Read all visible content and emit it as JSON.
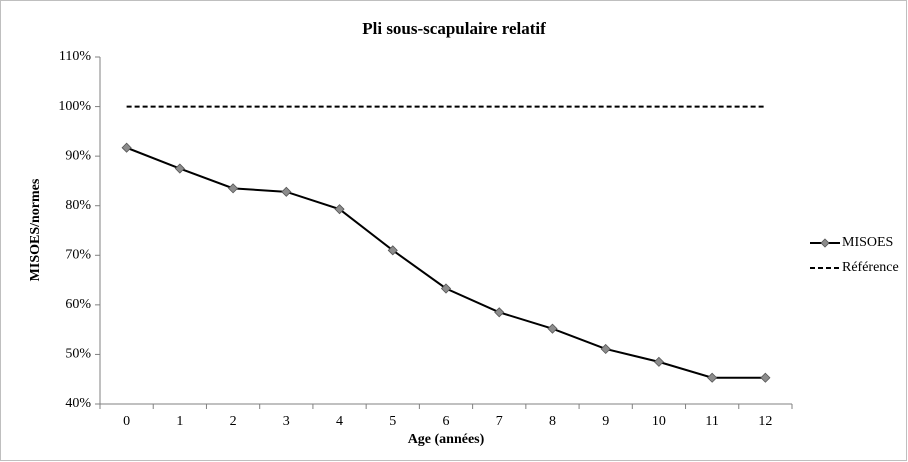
{
  "chart_data": {
    "type": "line",
    "title": "Pli sous-scapulaire relatif",
    "x_label": "Age (années)",
    "y_label": "MISOES/normes",
    "categories": [
      0,
      1,
      2,
      3,
      4,
      5,
      6,
      7,
      8,
      9,
      10,
      11,
      12
    ],
    "series": [
      {
        "name": "MISOES",
        "color": "#000000",
        "marker_color": "#8c8c8c",
        "marker": "diamond",
        "dashed": false,
        "values": [
          91.7,
          87.5,
          83.5,
          82.8,
          79.3,
          71.0,
          63.3,
          58.5,
          55.2,
          51.1,
          48.5,
          45.3,
          45.3
        ]
      },
      {
        "name": "Référence",
        "color": "#000000",
        "marker": "none",
        "dashed": true,
        "values": [
          100,
          100,
          100,
          100,
          100,
          100,
          100,
          100,
          100,
          100,
          100,
          100,
          100
        ]
      }
    ],
    "ylim": [
      40,
      110
    ],
    "yticks": [
      {
        "value": 40,
        "label": "40%"
      },
      {
        "value": 50,
        "label": "50%"
      },
      {
        "value": 60,
        "label": "60%"
      },
      {
        "value": 70,
        "label": "70%"
      },
      {
        "value": 80,
        "label": "80%"
      },
      {
        "value": 90,
        "label": "90%"
      },
      {
        "value": 100,
        "label": "100%"
      },
      {
        "value": 110,
        "label": "110%"
      }
    ],
    "grid": false,
    "legend": "right"
  }
}
